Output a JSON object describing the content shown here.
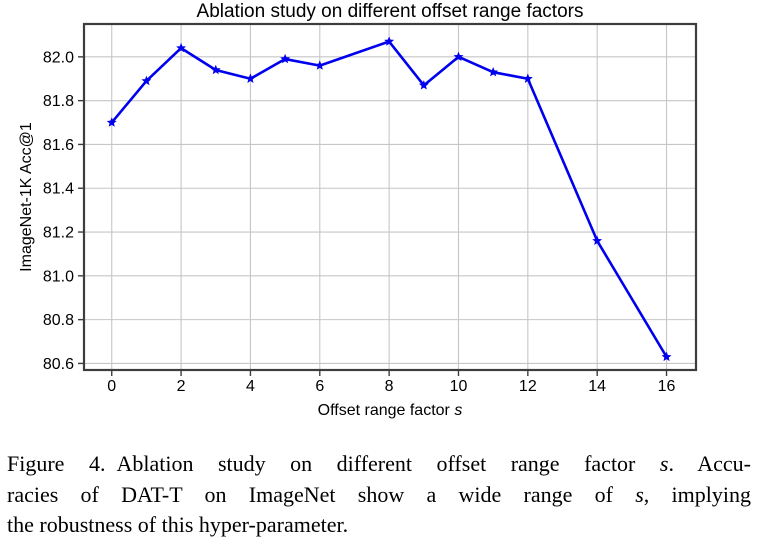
{
  "chart_data": {
    "type": "line",
    "title": "Ablation study on different offset range factors",
    "xlabel_main": "Offset range factor ",
    "xlabel_var": "s",
    "ylabel": "ImageNet-1K Acc@1",
    "series": [
      {
        "name": "DAT-T ImageNet-1K Acc@1",
        "x": [
          0,
          1,
          2,
          3,
          4,
          5,
          6,
          8,
          9,
          10,
          11,
          12,
          14,
          16
        ],
        "y": [
          81.7,
          81.89,
          82.04,
          81.94,
          81.9,
          81.99,
          81.96,
          82.07,
          81.87,
          82.0,
          81.93,
          81.9,
          81.16,
          80.63
        ]
      }
    ],
    "xticks": [
      0,
      2,
      4,
      6,
      8,
      10,
      12,
      14,
      16
    ],
    "yticks": [
      80.6,
      80.8,
      81.0,
      81.2,
      81.4,
      81.6,
      81.8,
      82.0
    ],
    "xlim": [
      -0.8,
      16.85
    ],
    "ylim": [
      80.57,
      82.15
    ],
    "grid": true,
    "legend": "none",
    "marker": "star",
    "line_color": "#0000ee",
    "grid_color": "#c6c6c6",
    "spine_color": "#3d3d3d",
    "text_color": "#000000"
  },
  "figure": {
    "caption": {
      "line1_a": "Figure 4. Ablation study on different offset range factor ",
      "line1_s": "s",
      "line1_b": ". Accu-",
      "line2_a": "racies of DAT-T on ImageNet show a wide range of ",
      "line2_s": "s",
      "line2_b": ", implying",
      "line3": "the robustness of this hyper-parameter."
    }
  }
}
